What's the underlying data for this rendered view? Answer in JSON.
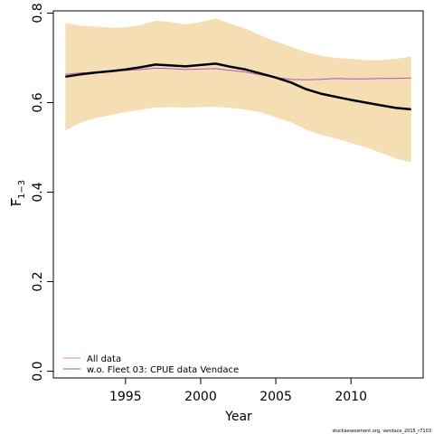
{
  "chart_data": {
    "type": "line",
    "xlabel": "Year",
    "ylabel_main": "F",
    "ylabel_sub": "1−3",
    "xlim": [
      1990.2,
      2014.8
    ],
    "ylim": [
      -0.015,
      0.805
    ],
    "x_ticks": [
      1995,
      2000,
      2005,
      2010
    ],
    "y_ticks": [
      0.0,
      0.2,
      0.4,
      0.6,
      0.8
    ],
    "y_tick_labels": [
      "0.0",
      "0.2",
      "0.4",
      "0.6",
      "0.8"
    ],
    "grid": false,
    "legend_position": "bottom-left",
    "band": {
      "color": "#f5deb3",
      "x": [
        1991,
        1992,
        1993,
        1994,
        1995,
        1996,
        1997,
        1998,
        1999,
        2000,
        2001,
        2002,
        2003,
        2004,
        2005,
        2006,
        2007,
        2008,
        2009,
        2010,
        2011,
        2012,
        2013,
        2014
      ],
      "upper": [
        0.778,
        0.772,
        0.77,
        0.767,
        0.768,
        0.773,
        0.783,
        0.78,
        0.775,
        0.78,
        0.788,
        0.776,
        0.765,
        0.75,
        0.737,
        0.725,
        0.713,
        0.705,
        0.7,
        0.698,
        0.695,
        0.695,
        0.698,
        0.703
      ],
      "lower": [
        0.538,
        0.555,
        0.565,
        0.572,
        0.579,
        0.584,
        0.589,
        0.59,
        0.589,
        0.59,
        0.591,
        0.588,
        0.584,
        0.578,
        0.567,
        0.556,
        0.54,
        0.528,
        0.52,
        0.51,
        0.5,
        0.488,
        0.475,
        0.466
      ]
    },
    "x": [
      1991,
      1992,
      1993,
      1994,
      1995,
      1996,
      1997,
      1998,
      1999,
      2000,
      2001,
      2002,
      2003,
      2004,
      2005,
      2006,
      2007,
      2008,
      2009,
      2010,
      2011,
      2012,
      2013,
      2014
    ],
    "series": [
      {
        "name": "All data",
        "color": "#000000",
        "legend_color": "#f08080",
        "values": [
          0.658,
          0.663,
          0.667,
          0.67,
          0.674,
          0.679,
          0.685,
          0.683,
          0.681,
          0.684,
          0.687,
          0.68,
          0.674,
          0.665,
          0.656,
          0.645,
          0.63,
          0.62,
          0.613,
          0.606,
          0.6,
          0.594,
          0.588,
          0.585
        ]
      },
      {
        "name": "w.o. Fleet 03:  CPUE data Vendace",
        "color": "#b050c0",
        "legend_color": "#b050c0",
        "values": [
          0.663,
          0.666,
          0.668,
          0.67,
          0.672,
          0.674,
          0.677,
          0.676,
          0.674,
          0.675,
          0.676,
          0.672,
          0.668,
          0.662,
          0.656,
          0.652,
          0.651,
          0.652,
          0.654,
          0.653,
          0.653,
          0.654,
          0.654,
          0.655
        ]
      }
    ]
  },
  "footer": {
    "credit": "stockassessment.org,  vendace_2015_r7103"
  }
}
